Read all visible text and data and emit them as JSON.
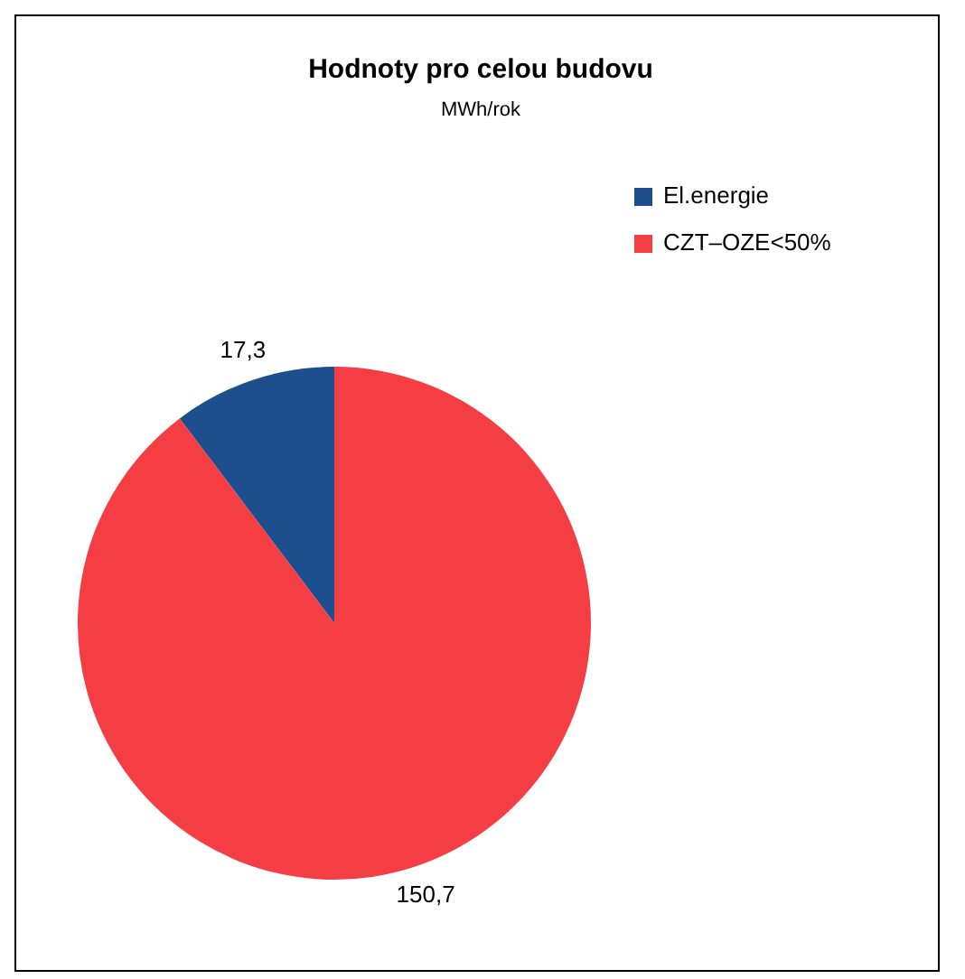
{
  "chart_data": {
    "type": "pie",
    "title": "Hodnoty pro celou budovu",
    "subtitle": "MWh/rok",
    "categories": [
      "El.energie",
      "CZT–OZE<50%"
    ],
    "values": [
      17.3,
      150.7
    ],
    "colors": [
      "#1d4f8e",
      "#f43e44"
    ],
    "value_labels": [
      "17,3",
      "150,7"
    ],
    "legend": "top right"
  }
}
